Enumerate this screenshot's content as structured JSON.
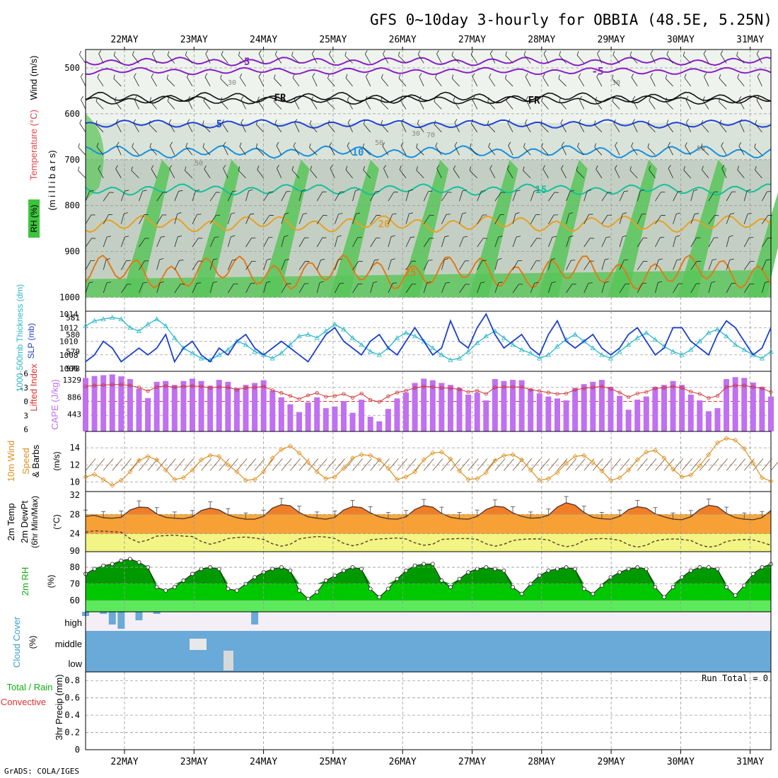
{
  "title": "GFS 0~10day 3-hourly for OBBIA (48.5E, 5.25N)",
  "credit": "GrADS: COLA/IGES",
  "run_total": "Run Total = 0",
  "chart_data": {
    "type": "meteogram",
    "time": {
      "days": [
        "22MAY",
        "23MAY",
        "24MAY",
        "25MAY",
        "26MAY",
        "27MAY",
        "28MAY",
        "29MAY",
        "30MAY",
        "31MAY"
      ],
      "start_day_offset": -0.46,
      "end_day_offset": 9.18,
      "step_hours": 3
    },
    "panels": {
      "upper": {
        "label_wind": "Wind (m/s)",
        "label_temp": "Temperature (°C)",
        "label_rh": "RH (%)",
        "ylabel": "(m i l l i b a r s)",
        "y_ticks": [
          "500",
          "600",
          "700",
          "800",
          "900",
          "1000"
        ],
        "ylim": [
          460,
          1030
        ],
        "isotherms": [
          {
            "label": "-5",
            "color": "#8a1fc4",
            "base": 486,
            "amp": 6
          },
          {
            "label": "-5",
            "color": "#8a1fc4",
            "base": 507,
            "amp": 5
          },
          {
            "label": "FR",
            "color": "#111111",
            "base": 565,
            "amp": 8
          },
          {
            "label": "FR",
            "color": "#111111",
            "base": 570,
            "amp": 6
          },
          {
            "label": "5",
            "color": "#1f44d6",
            "base": 622,
            "amp": 6
          },
          {
            "label": "10",
            "color": "#1a8fdc",
            "base": 683,
            "amp": 9
          },
          {
            "label": "15",
            "color": "#14c09a",
            "base": 765,
            "amp": 8
          },
          {
            "label": "20",
            "color": "#e8a020",
            "base": 840,
            "amp": 12
          },
          {
            "label": "25",
            "color": "#e07a18",
            "base": 945,
            "amp": 25
          }
        ],
        "rh_labels": [
          "30",
          "30",
          "50",
          "50",
          "50",
          "70",
          "30"
        ]
      },
      "slp": {
        "label_thick": "1000-500mb Thickness (dm)",
        "label_slp": "SLP (mb)",
        "left_ticks": [
          "581",
          "580",
          "579",
          "578"
        ],
        "right_ticks": [
          "1014",
          "1012",
          "1010",
          "1008",
          "1006"
        ],
        "slp": [
          1007,
          1008,
          1010,
          1009,
          1007,
          1008,
          1009,
          1008,
          1009,
          1011,
          1007,
          1009,
          1010,
          1008,
          1007,
          1009,
          1008,
          1010,
          1011,
          1009,
          1008,
          1009,
          1010,
          1009,
          1008,
          1007,
          1009,
          1011,
          1012,
          1010,
          1009,
          1008,
          1010,
          1011,
          1009,
          1008,
          1010,
          1012,
          1010,
          1008,
          1009,
          1013,
          1010,
          1009,
          1012,
          1014,
          1011,
          1009,
          1010,
          1011,
          1009,
          1008,
          1011,
          1013,
          1010,
          1009,
          1010,
          1011,
          1009,
          1008,
          1009,
          1011,
          1012,
          1010,
          1008,
          1009,
          1012,
          1012,
          1010,
          1009,
          1008,
          1011,
          1013,
          1012,
          1010,
          1008,
          1009,
          1012
        ],
        "thickness": [
          580.5,
          580.8,
          580.9,
          581.0,
          580.9,
          580.4,
          580.2,
          580.6,
          580.9,
          580.5,
          579.8,
          579.2,
          578.9,
          578.6,
          578.5,
          578.8,
          579.1,
          579.6,
          579.4,
          579.0,
          578.8,
          578.6,
          578.9,
          579.4,
          579.9,
          580.0,
          579.8,
          580.2,
          580.6,
          580.3,
          579.8,
          579.4,
          579.0,
          578.8,
          579.2,
          579.8,
          580.1,
          579.9,
          579.6,
          579.2,
          578.8,
          578.5,
          578.6,
          579.0,
          579.5,
          579.9,
          580.2,
          579.8,
          579.4,
          579.1,
          578.9,
          578.6,
          578.8,
          579.3,
          579.7,
          580.0,
          579.6,
          579.2,
          578.8,
          578.6,
          579.0,
          579.4,
          579.8,
          580.1,
          579.7,
          579.3,
          579.0,
          578.8,
          579.1,
          579.6,
          580.1,
          580.3,
          579.9,
          579.4,
          579.1,
          578.8,
          578.6,
          579.0
        ]
      },
      "cape": {
        "label_li": "Lifted Index",
        "label_cape": "CAPE (J/kg)",
        "left_ticks": [
          "-6",
          "-3",
          "0",
          "3",
          "6"
        ],
        "right_ticks": [
          "1329",
          "886",
          "443"
        ],
        "cape": [
          1380,
          1430,
          1450,
          1470,
          1420,
          1350,
          1100,
          860,
          1280,
          1300,
          1200,
          1300,
          1360,
          1300,
          1180,
          1330,
          1280,
          1120,
          1200,
          1250,
          1320,
          1050,
          880,
          700,
          500,
          750,
          880,
          600,
          640,
          780,
          480,
          820,
          380,
          260,
          580,
          850,
          1000,
          1250,
          1360,
          1320,
          1250,
          1200,
          1120,
          950,
          1000,
          800,
          1350,
          1300,
          1330,
          1320,
          1100,
          980,
          900,
          850,
          800,
          1120,
          1220,
          1280,
          1330,
          1150,
          920,
          560,
          820,
          900,
          1150,
          1200,
          1300,
          1200,
          950,
          800,
          520,
          600,
          1350,
          1400,
          1380,
          1260,
          1150,
          900
        ],
        "li": [
          -3.2,
          -3.4,
          -3.5,
          -3.6,
          -3.6,
          -3.4,
          -3.0,
          -2.2,
          -3.1,
          -3.3,
          -3.0,
          -3.2,
          -3.3,
          -3.2,
          -2.9,
          -3.1,
          -3.0,
          -2.5,
          -2.9,
          -3.0,
          -3.2,
          -2.4,
          -1.8,
          -1.2,
          -0.5,
          -1.3,
          -1.8,
          -1.0,
          -1.2,
          -1.6,
          -0.8,
          -1.7,
          -0.3,
          0.1,
          -1.1,
          -1.9,
          -2.3,
          -2.9,
          -3.2,
          -3.1,
          -2.9,
          -2.8,
          -2.6,
          -2.0,
          -2.3,
          -1.6,
          -3.0,
          -3.1,
          -3.1,
          -3.1,
          -2.5,
          -2.2,
          -1.9,
          -1.6,
          -1.7,
          -2.5,
          -2.8,
          -3.0,
          -3.2,
          -2.7,
          -1.9,
          -0.9,
          -1.7,
          -2.0,
          -2.8,
          -2.9,
          -3.2,
          -2.9,
          -2.1,
          -1.6,
          -0.7,
          -1.2,
          -3.1,
          -3.4,
          -3.4,
          -3.1,
          -2.8,
          -2.0
        ]
      },
      "wind": {
        "label_wind": "10m Wind",
        "label_speed": "Speed",
        "label_barbs": "& Barbs",
        "label_units": "(m/s)",
        "y_ticks": [
          "14",
          "12",
          "10"
        ],
        "speed": [
          10.6,
          10.9,
          10.3,
          9.6,
          10.2,
          11.2,
          12.5,
          13.0,
          12.6,
          11.4,
          10.3,
          10.5,
          11.4,
          12.6,
          13.1,
          13.0,
          12.0,
          11.2,
          10.2,
          10.3,
          11.2,
          12.8,
          13.8,
          14.2,
          13.4,
          12.3,
          11.2,
          10.4,
          10.6,
          11.6,
          12.8,
          13.2,
          13.1,
          12.6,
          11.6,
          10.3,
          10.6,
          11.2,
          12.6,
          13.4,
          13.5,
          12.7,
          11.3,
          10.3,
          10.4,
          11.1,
          12.5,
          13.1,
          13.2,
          12.6,
          11.4,
          10.2,
          10.4,
          11.1,
          12.2,
          13.0,
          13.1,
          12.3,
          11.3,
          10.2,
          10.5,
          11.4,
          12.6,
          13.5,
          13.7,
          12.8,
          11.5,
          10.6,
          10.8,
          11.9,
          13.2,
          14.6,
          15.1,
          14.9,
          13.9,
          12.2,
          10.5,
          10.1
        ]
      },
      "temp": {
        "label_temp": "2m Temp",
        "label_dew": "2m DewPt",
        "label_minmax": "(6hr Min/Max)",
        "label_units": "(°C)",
        "y_ticks": [
          "32",
          "28",
          "24",
          "90"
        ],
        "temp": [
          27.6,
          27.8,
          27.3,
          27.2,
          27.4,
          28.9,
          29.5,
          29.4,
          28.1,
          27.4,
          27.2,
          27.1,
          27.5,
          28.8,
          29.3,
          28.9,
          27.9,
          27.3,
          27.0,
          27.0,
          27.6,
          29.3,
          30.0,
          29.8,
          28.4,
          27.5,
          27.2,
          27.0,
          27.4,
          28.9,
          29.6,
          29.4,
          28.3,
          27.5,
          27.1,
          27.0,
          27.5,
          29.0,
          29.8,
          29.5,
          28.2,
          27.4,
          27.1,
          27.0,
          27.6,
          29.0,
          29.7,
          29.5,
          28.3,
          27.6,
          27.2,
          27.3,
          27.8,
          29.5,
          30.4,
          29.9,
          28.4,
          27.4,
          27.1,
          27.0,
          27.6,
          29.0,
          29.6,
          29.3,
          28.1,
          27.5,
          27.0,
          26.9,
          27.5,
          29.0,
          29.9,
          29.6,
          28.2,
          27.3,
          27.0,
          26.9,
          27.3,
          28.8
        ],
        "dew": [
          24.3,
          24.6,
          24.5,
          24.4,
          24.3,
          23.0,
          22.2,
          22.7,
          23.5,
          23.6,
          23.7,
          23.5,
          23.4,
          22.4,
          21.8,
          22.3,
          23.0,
          23.2,
          23.3,
          23.1,
          22.8,
          21.9,
          21.4,
          21.8,
          22.9,
          23.2,
          23.4,
          23.3,
          23.0,
          22.0,
          21.5,
          21.9,
          22.7,
          22.9,
          23.0,
          23.1,
          22.9,
          22.1,
          21.6,
          21.8,
          22.8,
          22.9,
          23.0,
          23.0,
          22.8,
          21.9,
          21.4,
          21.8,
          22.6,
          22.8,
          22.9,
          22.9,
          22.7,
          21.8,
          21.3,
          21.6,
          22.6,
          22.9,
          23.0,
          22.9,
          22.6,
          21.7,
          21.2,
          21.6,
          22.5,
          22.8,
          22.9,
          22.8,
          22.6,
          21.7,
          21.2,
          21.5,
          22.4,
          22.7,
          22.8,
          22.7,
          22.2,
          21.6
        ]
      },
      "rh": {
        "label": "2m RH",
        "label_units": "(%)",
        "y_ticks": [
          "80",
          "70",
          "60"
        ],
        "rh": [
          76,
          79,
          81,
          82,
          84,
          85,
          83,
          80,
          68,
          66,
          68,
          72,
          76,
          79,
          80,
          79,
          67,
          66,
          70,
          74,
          77,
          79,
          80,
          78,
          66,
          61,
          65,
          72,
          75,
          78,
          80,
          79,
          67,
          62,
          67,
          73,
          78,
          81,
          82,
          82,
          72,
          68,
          73,
          77,
          79,
          80,
          79,
          78,
          68,
          64,
          70,
          75,
          78,
          79,
          80,
          79,
          67,
          64,
          69,
          74,
          77,
          79,
          80,
          79,
          68,
          62,
          68,
          74,
          78,
          80,
          80,
          79,
          68,
          63,
          69,
          76,
          80,
          82
        ]
      },
      "cloud": {
        "label": "Cloud Cover",
        "label_units": "(%)",
        "levels": [
          "high",
          "middle",
          "low"
        ],
        "high": [
          10,
          0,
          5,
          30,
          40,
          0,
          20,
          0,
          5,
          0,
          0,
          0,
          0,
          0,
          0,
          0,
          0,
          0,
          0,
          30,
          0,
          0,
          0,
          0,
          0,
          0,
          0,
          0,
          0,
          0,
          0,
          0,
          0,
          0,
          0,
          0,
          0,
          0,
          0,
          0,
          0,
          0,
          0,
          0,
          0,
          0,
          0,
          0,
          0,
          0,
          0,
          0,
          0,
          0,
          0,
          0,
          0,
          0,
          0,
          0,
          0,
          0,
          0,
          0,
          0,
          0,
          0,
          0,
          0,
          0,
          0,
          0,
          0,
          0,
          0,
          0,
          0,
          0,
          0,
          0
        ]
      },
      "precip": {
        "label_total": "Total / Rain",
        "label_conv": "Convective",
        "ylabel": "3hr Precip (mm)",
        "y_ticks": [
          "0.8",
          "0.6",
          "0.4",
          "0.2",
          "0"
        ],
        "ylim": [
          0,
          0.9
        ],
        "total": []
      }
    }
  }
}
